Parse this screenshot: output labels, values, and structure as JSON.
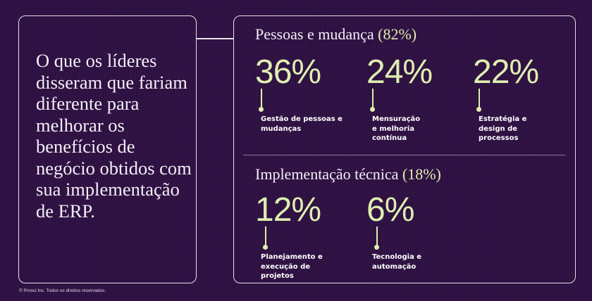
{
  "headline": "O que os líderes disseram que fariam diferente para melhorar os benefícios de negócio obtidos com sua implementação de ERP.",
  "sections": [
    {
      "title": "Pessoas e mudança",
      "share": "(82%)",
      "stats": [
        {
          "value": "36%",
          "label": "Gestão de pessoas e mudanças"
        },
        {
          "value": "24%",
          "label": "Mensuração e melhoria contínua"
        },
        {
          "value": "22%",
          "label": "Estratégia e design de processos"
        }
      ]
    },
    {
      "title": "Implementação técnica",
      "share": "(18%)",
      "stats": [
        {
          "value": "12%",
          "label": "Planejamento e execução de projetos"
        },
        {
          "value": "6%",
          "label": "Tecnologia e automação"
        }
      ]
    }
  ],
  "footer": "© Prosci Inc. Todos os direitos reservados.",
  "colors": {
    "background": "#2e1142",
    "accent": "#dfeeb0",
    "border": "#e7e0ea",
    "text": "#ffffff"
  }
}
